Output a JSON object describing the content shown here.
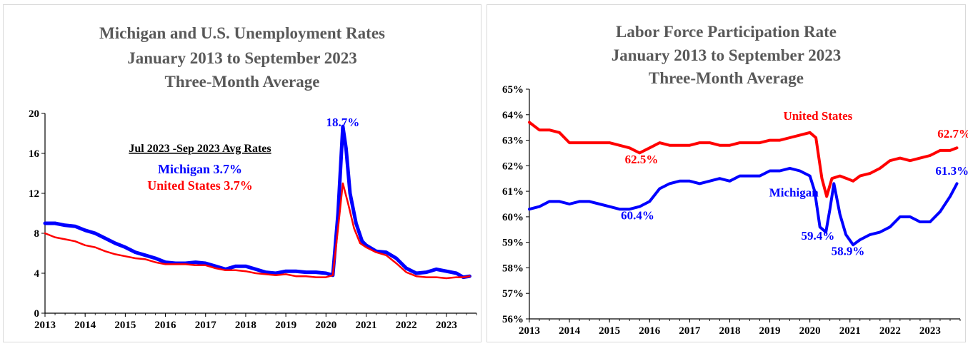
{
  "chart_data": [
    {
      "type": "line",
      "title": [
        "Michigan and U.S. Unemployment Rates",
        "January 2013 to September 2023",
        "Three-Month Average"
      ],
      "xlabel": "",
      "ylabel": "",
      "x_ticks": [
        "2013",
        "2014",
        "2015",
        "2016",
        "2017",
        "2018",
        "2019",
        "2020",
        "2021",
        "2022",
        "2023"
      ],
      "y_ticks": [
        "0",
        "4",
        "8",
        "12",
        "16",
        "20"
      ],
      "xlim": [
        2013.0,
        2023.75
      ],
      "ylim": [
        0,
        20
      ],
      "grid": false,
      "inset_heading": "Jul 2023 -Sep 2023 Avg Rates",
      "inset_lines": [
        {
          "text": "Michigan 3.7%",
          "color": "#0000ff"
        },
        {
          "text": "United States 3.7%",
          "color": "#ff0000"
        }
      ],
      "series": [
        {
          "name": "Michigan",
          "color": "#0000ff",
          "points": [
            [
              2013.0,
              9.0
            ],
            [
              2013.25,
              9.0
            ],
            [
              2013.5,
              8.8
            ],
            [
              2013.75,
              8.7
            ],
            [
              2014.0,
              8.3
            ],
            [
              2014.25,
              8.0
            ],
            [
              2014.5,
              7.5
            ],
            [
              2014.75,
              7.0
            ],
            [
              2015.0,
              6.6
            ],
            [
              2015.25,
              6.1
            ],
            [
              2015.5,
              5.8
            ],
            [
              2015.75,
              5.5
            ],
            [
              2016.0,
              5.1
            ],
            [
              2016.25,
              5.0
            ],
            [
              2016.5,
              5.0
            ],
            [
              2016.75,
              5.1
            ],
            [
              2017.0,
              5.0
            ],
            [
              2017.25,
              4.7
            ],
            [
              2017.5,
              4.4
            ],
            [
              2017.75,
              4.7
            ],
            [
              2018.0,
              4.7
            ],
            [
              2018.25,
              4.4
            ],
            [
              2018.5,
              4.1
            ],
            [
              2018.75,
              4.0
            ],
            [
              2019.0,
              4.2
            ],
            [
              2019.25,
              4.2
            ],
            [
              2019.5,
              4.1
            ],
            [
              2019.75,
              4.1
            ],
            [
              2020.0,
              4.0
            ],
            [
              2020.17,
              3.8
            ],
            [
              2020.3,
              10.0
            ],
            [
              2020.42,
              18.7
            ],
            [
              2020.5,
              16.5
            ],
            [
              2020.6,
              12.0
            ],
            [
              2020.75,
              9.0
            ],
            [
              2020.9,
              7.2
            ],
            [
              2021.0,
              6.8
            ],
            [
              2021.25,
              6.2
            ],
            [
              2021.5,
              6.1
            ],
            [
              2021.75,
              5.5
            ],
            [
              2022.0,
              4.5
            ],
            [
              2022.25,
              4.0
            ],
            [
              2022.5,
              4.1
            ],
            [
              2022.75,
              4.4
            ],
            [
              2023.0,
              4.2
            ],
            [
              2023.25,
              4.0
            ],
            [
              2023.42,
              3.6
            ],
            [
              2023.58,
              3.7
            ]
          ]
        },
        {
          "name": "United States",
          "color": "#ff0000",
          "points": [
            [
              2013.0,
              8.0
            ],
            [
              2013.25,
              7.6
            ],
            [
              2013.5,
              7.4
            ],
            [
              2013.75,
              7.2
            ],
            [
              2014.0,
              6.8
            ],
            [
              2014.25,
              6.6
            ],
            [
              2014.5,
              6.2
            ],
            [
              2014.75,
              5.9
            ],
            [
              2015.0,
              5.7
            ],
            [
              2015.25,
              5.5
            ],
            [
              2015.5,
              5.4
            ],
            [
              2015.75,
              5.1
            ],
            [
              2016.0,
              4.9
            ],
            [
              2016.25,
              4.9
            ],
            [
              2016.5,
              4.9
            ],
            [
              2016.75,
              4.8
            ],
            [
              2017.0,
              4.8
            ],
            [
              2017.25,
              4.5
            ],
            [
              2017.5,
              4.3
            ],
            [
              2017.75,
              4.3
            ],
            [
              2018.0,
              4.2
            ],
            [
              2018.25,
              4.0
            ],
            [
              2018.5,
              3.9
            ],
            [
              2018.75,
              3.8
            ],
            [
              2019.0,
              3.9
            ],
            [
              2019.25,
              3.7
            ],
            [
              2019.5,
              3.7
            ],
            [
              2019.75,
              3.6
            ],
            [
              2020.0,
              3.6
            ],
            [
              2020.17,
              3.8
            ],
            [
              2020.3,
              8.5
            ],
            [
              2020.42,
              13.0
            ],
            [
              2020.55,
              11.0
            ],
            [
              2020.7,
              8.5
            ],
            [
              2020.85,
              7.0
            ],
            [
              2021.0,
              6.6
            ],
            [
              2021.25,
              6.1
            ],
            [
              2021.5,
              5.8
            ],
            [
              2021.75,
              5.0
            ],
            [
              2022.0,
              4.1
            ],
            [
              2022.25,
              3.7
            ],
            [
              2022.5,
              3.6
            ],
            [
              2022.75,
              3.6
            ],
            [
              2023.0,
              3.5
            ],
            [
              2023.25,
              3.6
            ],
            [
              2023.42,
              3.6
            ],
            [
              2023.58,
              3.7
            ]
          ]
        }
      ],
      "annotations": [
        {
          "text": "18.7%",
          "x": 2020.42,
          "y": 18.7,
          "color": "#0000ff"
        }
      ]
    },
    {
      "type": "line",
      "title": [
        "Labor Force Participation Rate",
        "January 2013 to September 2023",
        "Three-Month Average"
      ],
      "xlabel": "",
      "ylabel": "",
      "x_ticks": [
        "2013",
        "2014",
        "2015",
        "2016",
        "2017",
        "2018",
        "2019",
        "2020",
        "2021",
        "2022",
        "2023"
      ],
      "y_ticks": [
        "56%",
        "57%",
        "58%",
        "59%",
        "60%",
        "61%",
        "62%",
        "63%",
        "64%",
        "65%"
      ],
      "xlim": [
        2013.0,
        2023.75
      ],
      "ylim": [
        56,
        65
      ],
      "grid": false,
      "series": [
        {
          "name": "United States",
          "color": "#ff0000",
          "points": [
            [
              2013.0,
              63.7
            ],
            [
              2013.25,
              63.4
            ],
            [
              2013.5,
              63.4
            ],
            [
              2013.75,
              63.3
            ],
            [
              2014.0,
              62.9
            ],
            [
              2014.25,
              62.9
            ],
            [
              2014.5,
              62.9
            ],
            [
              2014.75,
              62.9
            ],
            [
              2015.0,
              62.9
            ],
            [
              2015.25,
              62.8
            ],
            [
              2015.5,
              62.7
            ],
            [
              2015.75,
              62.5
            ],
            [
              2016.0,
              62.7
            ],
            [
              2016.25,
              62.9
            ],
            [
              2016.5,
              62.8
            ],
            [
              2016.75,
              62.8
            ],
            [
              2017.0,
              62.8
            ],
            [
              2017.25,
              62.9
            ],
            [
              2017.5,
              62.9
            ],
            [
              2017.75,
              62.8
            ],
            [
              2018.0,
              62.8
            ],
            [
              2018.25,
              62.9
            ],
            [
              2018.5,
              62.9
            ],
            [
              2018.75,
              62.9
            ],
            [
              2019.0,
              63.0
            ],
            [
              2019.25,
              63.0
            ],
            [
              2019.5,
              63.1
            ],
            [
              2019.75,
              63.2
            ],
            [
              2020.0,
              63.3
            ],
            [
              2020.15,
              63.1
            ],
            [
              2020.3,
              61.5
            ],
            [
              2020.42,
              60.8
            ],
            [
              2020.55,
              61.5
            ],
            [
              2020.75,
              61.6
            ],
            [
              2020.92,
              61.5
            ],
            [
              2021.08,
              61.4
            ],
            [
              2021.25,
              61.6
            ],
            [
              2021.5,
              61.7
            ],
            [
              2021.75,
              61.9
            ],
            [
              2022.0,
              62.2
            ],
            [
              2022.25,
              62.3
            ],
            [
              2022.5,
              62.2
            ],
            [
              2022.75,
              62.3
            ],
            [
              2023.0,
              62.4
            ],
            [
              2023.25,
              62.6
            ],
            [
              2023.5,
              62.6
            ],
            [
              2023.67,
              62.7
            ]
          ]
        },
        {
          "name": "Michigan",
          "color": "#0000ff",
          "points": [
            [
              2013.0,
              60.3
            ],
            [
              2013.25,
              60.4
            ],
            [
              2013.5,
              60.6
            ],
            [
              2013.75,
              60.6
            ],
            [
              2014.0,
              60.5
            ],
            [
              2014.25,
              60.6
            ],
            [
              2014.5,
              60.6
            ],
            [
              2014.75,
              60.5
            ],
            [
              2015.0,
              60.4
            ],
            [
              2015.25,
              60.3
            ],
            [
              2015.5,
              60.3
            ],
            [
              2015.75,
              60.4
            ],
            [
              2016.0,
              60.6
            ],
            [
              2016.25,
              61.1
            ],
            [
              2016.5,
              61.3
            ],
            [
              2016.75,
              61.4
            ],
            [
              2017.0,
              61.4
            ],
            [
              2017.25,
              61.3
            ],
            [
              2017.5,
              61.4
            ],
            [
              2017.75,
              61.5
            ],
            [
              2018.0,
              61.4
            ],
            [
              2018.25,
              61.6
            ],
            [
              2018.5,
              61.6
            ],
            [
              2018.75,
              61.6
            ],
            [
              2019.0,
              61.8
            ],
            [
              2019.25,
              61.8
            ],
            [
              2019.5,
              61.9
            ],
            [
              2019.75,
              61.8
            ],
            [
              2020.0,
              61.6
            ],
            [
              2020.12,
              61.0
            ],
            [
              2020.25,
              59.6
            ],
            [
              2020.4,
              59.4
            ],
            [
              2020.5,
              60.3
            ],
            [
              2020.6,
              61.3
            ],
            [
              2020.75,
              60.1
            ],
            [
              2020.9,
              59.3
            ],
            [
              2021.08,
              58.9
            ],
            [
              2021.25,
              59.1
            ],
            [
              2021.5,
              59.3
            ],
            [
              2021.75,
              59.4
            ],
            [
              2022.0,
              59.6
            ],
            [
              2022.25,
              60.0
            ],
            [
              2022.5,
              60.0
            ],
            [
              2022.75,
              59.8
            ],
            [
              2023.0,
              59.8
            ],
            [
              2023.25,
              60.2
            ],
            [
              2023.5,
              60.8
            ],
            [
              2023.67,
              61.3
            ]
          ]
        }
      ],
      "annotations": [
        {
          "text": "United States",
          "x": 2020.2,
          "y": 63.8,
          "color": "#ff0000"
        },
        {
          "text": "62.5%",
          "x": 2015.8,
          "y": 62.1,
          "color": "#ff0000"
        },
        {
          "text": "62.7%",
          "x": 2023.6,
          "y": 63.1,
          "color": "#ff0000"
        },
        {
          "text": "Michigan",
          "x": 2019.6,
          "y": 60.8,
          "color": "#0000ff"
        },
        {
          "text": "60.4%",
          "x": 2015.7,
          "y": 59.9,
          "color": "#0000ff"
        },
        {
          "text": "59.4%",
          "x": 2020.2,
          "y": 59.1,
          "color": "#0000ff"
        },
        {
          "text": "58.9%",
          "x": 2020.95,
          "y": 58.5,
          "color": "#0000ff"
        },
        {
          "text": "61.3%",
          "x": 2023.55,
          "y": 61.65,
          "color": "#0000ff"
        }
      ]
    }
  ]
}
